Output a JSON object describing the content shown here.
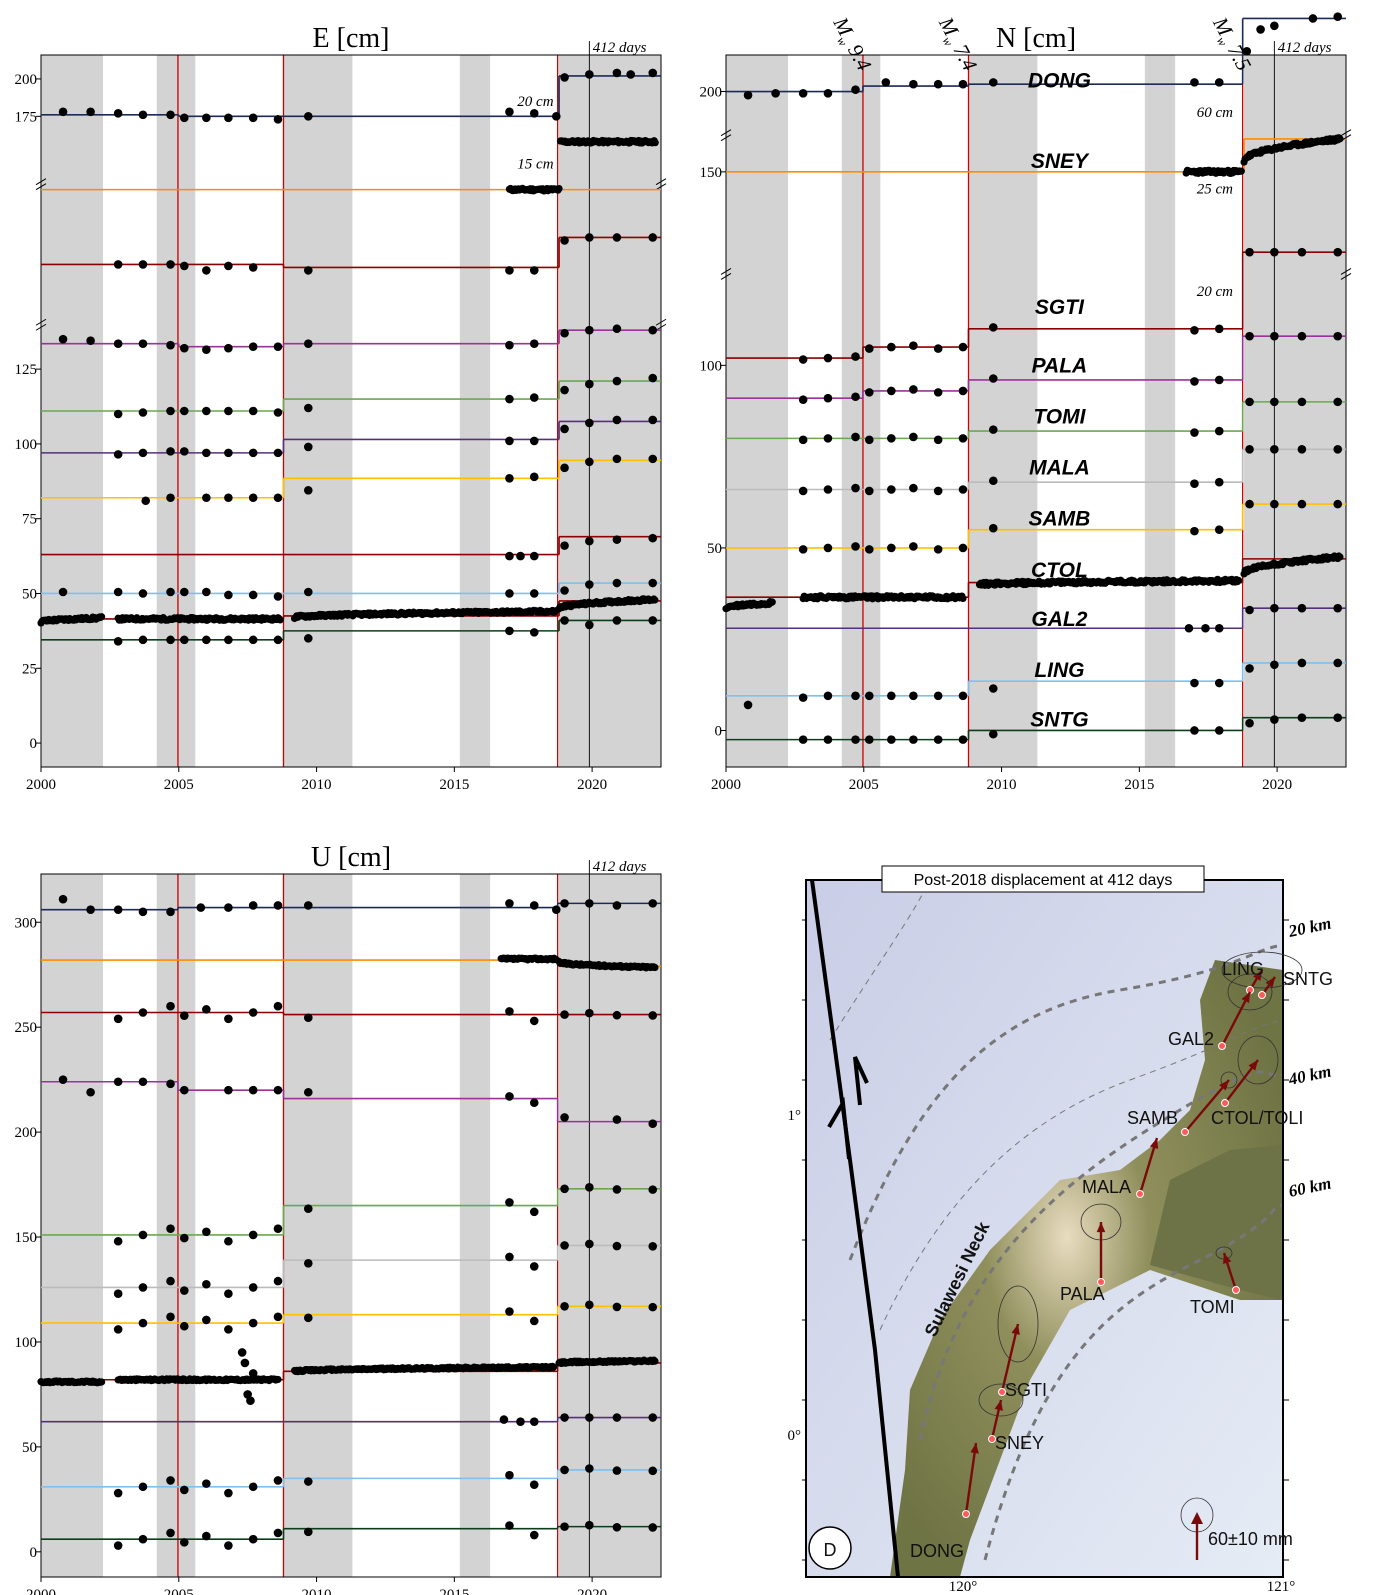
{
  "colors": {
    "DONG": "#1c2a57",
    "SNEY": "#ff8c00",
    "SGTI": "#8b0000",
    "PALA": "#993399",
    "TOMI": "#6aa84f",
    "MALA": "#bbbbbb",
    "SAMB": "#ffc000",
    "CTOL": "#8b0000",
    "GAL2": "#55307a",
    "LING": "#7ec0ee",
    "SNTG": "#0b3d1a",
    "event_line": "#cc0000",
    "shade": "#d3d3d3",
    "point": "#000000",
    "arrow": "#7a0a0a"
  },
  "chart_data": [
    {
      "type": "scatter",
      "panel": "E",
      "title": "E [cm]",
      "xlim": [
        2000,
        2022.5
      ],
      "ylim": [
        -8,
        230
      ],
      "xticks": [
        "2000",
        "2005",
        "2010",
        "2015",
        "2020"
      ],
      "ytick_labels": [
        "0",
        "25",
        "50",
        "75",
        "100",
        "125",
        "175",
        "200"
      ],
      "annotation_412": "412 days",
      "break_labels": [
        "20 cm",
        "15 cm"
      ],
      "series": [
        {
          "name": "DONG",
          "color_key": "DONG",
          "offset_steps": [
            [
              2000,
              210
            ],
            [
              2005,
              209.5
            ],
            [
              2008.8,
              209.5
            ],
            [
              2018.8,
              223
            ]
          ],
          "x": [
            2000.8,
            2001.8,
            2002.8,
            2003.7,
            2004.7,
            2005.2,
            2006.0,
            2006.8,
            2007.7,
            2008.6,
            2009.7,
            2017.0,
            2017.9,
            2018.7,
            2019.0,
            2019.9,
            2020.9,
            2021.4,
            2022.2
          ],
          "y": [
            211,
            211,
            210.5,
            210,
            210,
            209,
            209,
            209,
            209,
            208.5,
            209.5,
            211,
            210.5,
            209.5,
            222.5,
            223.5,
            224,
            223.5,
            224
          ]
        },
        {
          "name": "SNEY",
          "color_key": "SNEY",
          "offset_steps": [
            [
              2000,
              185
            ],
            [
              2018.8,
              185
            ]
          ],
          "dense": [
            [
              2017,
              2018.8,
              185
            ],
            [
              2018.85,
              2022.3,
              201
            ]
          ]
        },
        {
          "name": "SGTI",
          "color_key": "SGTI",
          "offset_steps": [
            [
              2000,
              160
            ],
            [
              2008.8,
              159
            ],
            [
              2018.8,
              169
            ]
          ],
          "x": [
            2002.8,
            2003.7,
            2004.7,
            2005.2,
            2006.0,
            2006.8,
            2007.7,
            2009.7,
            2017.0,
            2017.9,
            2019.0,
            2019.9,
            2020.9,
            2022.2
          ],
          "y": [
            160,
            160,
            160,
            159.5,
            158,
            159.5,
            159,
            158,
            158,
            158,
            168,
            169,
            169,
            169
          ]
        },
        {
          "name": "PALA",
          "color_key": "PALA",
          "offset_steps": [
            [
              2000,
              133.5
            ],
            [
              2005,
              132.5
            ],
            [
              2008.8,
              133.5
            ],
            [
              2018.8,
              138
            ]
          ],
          "x": [
            2000.8,
            2001.8,
            2002.8,
            2003.7,
            2004.7,
            2005.2,
            2006.0,
            2006.8,
            2007.7,
            2008.6,
            2009.7,
            2017.0,
            2017.9,
            2019.0,
            2019.9,
            2020.9,
            2022.2
          ],
          "y": [
            135,
            134.5,
            133.5,
            133.5,
            133,
            132,
            131.5,
            132,
            132.5,
            132.5,
            133.5,
            133,
            133.5,
            137,
            138,
            138.5,
            138
          ]
        },
        {
          "name": "TOMI",
          "color_key": "TOMI",
          "offset_steps": [
            [
              2000,
              111
            ],
            [
              2008.8,
              115
            ],
            [
              2018.8,
              121
            ]
          ],
          "x": [
            2002.8,
            2003.7,
            2004.7,
            2005.2,
            2006.0,
            2006.8,
            2007.7,
            2008.6,
            2009.7,
            2017.0,
            2017.9,
            2019.0,
            2019.9,
            2020.9,
            2022.2
          ],
          "y": [
            110,
            110.5,
            111,
            111,
            111,
            111,
            111,
            110.5,
            112,
            115,
            115.5,
            118,
            120,
            121,
            122
          ]
        },
        {
          "name": "GAL2",
          "color_key": "GAL2",
          "offset_steps": [
            [
              2000,
              97
            ],
            [
              2008.8,
              101.5
            ],
            [
              2018.8,
              107.5
            ]
          ],
          "x": [
            2002.8,
            2003.7,
            2004.7,
            2005.2,
            2006.0,
            2006.8,
            2007.7,
            2008.6,
            2009.7,
            2017.0,
            2017.9,
            2019.0,
            2019.9,
            2020.9,
            2022.2
          ],
          "y": [
            96.5,
            97,
            97.5,
            97.5,
            97,
            97,
            97,
            97,
            99,
            101,
            101,
            105,
            107,
            108,
            108
          ]
        },
        {
          "name": "SAMB",
          "color_key": "SAMB",
          "offset_steps": [
            [
              2000,
              82
            ],
            [
              2008.8,
              88.5
            ],
            [
              2018.8,
              94.5
            ]
          ],
          "x": [
            2003.8,
            2004.7,
            2006.0,
            2006.8,
            2007.7,
            2008.6,
            2009.7,
            2017.0,
            2017.9,
            2019.0,
            2019.9,
            2020.9,
            2022.2
          ],
          "y": [
            81,
            82,
            82,
            82,
            82,
            82,
            84.5,
            88.5,
            89,
            92,
            94,
            95,
            95
          ]
        },
        {
          "name": "CTOL",
          "color_key": "CTOL",
          "offset_steps": [
            [
              2000,
              41.5
            ],
            [
              2008.8,
              42.5
            ],
            [
              2018.8,
              47.5
            ]
          ],
          "dense": [
            [
              2000,
              2002.2,
              40.5,
              41.8
            ],
            [
              2002.8,
              2008.7,
              41.5,
              41.5
            ],
            [
              2009.2,
              2018.7,
              42,
              44
            ],
            [
              2018.8,
              2022.3,
              45,
              48
            ]
          ]
        },
        {
          "name": "MALA",
          "color_key": "CTOL",
          "offset_steps": [
            [
              2000,
              63
            ],
            [
              2018.8,
              69
            ]
          ],
          "x": [
            2017.0,
            2017.4,
            2017.9,
            2019.0,
            2019.9,
            2020.9,
            2022.2
          ],
          "y": [
            62.5,
            62.5,
            62.5,
            66,
            67.5,
            68,
            68.5
          ]
        },
        {
          "name": "LING",
          "color_key": "LING",
          "offset_steps": [
            [
              2000,
              50
            ],
            [
              2018.8,
              53.5
            ]
          ],
          "x": [
            2000.8,
            2002.8,
            2003.7,
            2004.7,
            2005.2,
            2006.0,
            2006.8,
            2007.7,
            2008.6,
            2009.7,
            2017.0,
            2017.9,
            2019.0,
            2019.9,
            2020.9,
            2022.2
          ],
          "y": [
            50.5,
            50.5,
            50,
            50.5,
            50.5,
            50.5,
            49.5,
            49.5,
            49,
            50.5,
            50,
            50,
            51,
            53,
            53.5,
            53.5
          ]
        },
        {
          "name": "SNTG",
          "color_key": "SNTG",
          "offset_steps": [
            [
              2000,
              34.5
            ],
            [
              2008.8,
              37.5
            ],
            [
              2018.8,
              41
            ]
          ],
          "x": [
            2002.8,
            2003.7,
            2004.7,
            2005.2,
            2006.0,
            2006.8,
            2007.7,
            2008.6,
            2009.7,
            2017.0,
            2017.9,
            2019.0,
            2019.9,
            2020.9,
            2022.2
          ],
          "y": [
            34,
            34.5,
            34.5,
            34.5,
            34.5,
            34.5,
            34.5,
            34.5,
            35,
            37.5,
            37,
            41,
            39.5,
            41,
            41
          ]
        }
      ]
    },
    {
      "type": "scatter",
      "panel": "N",
      "title": "N [cm]",
      "xlim": [
        2000,
        2022.5
      ],
      "ylim": [
        -10,
        185
      ],
      "xticks": [
        "2000",
        "2005",
        "2010",
        "2015",
        "2020"
      ],
      "ytick_labels": [
        "0",
        "50",
        "100",
        "150",
        "200"
      ],
      "annotation_412": "412 days",
      "break_labels": [
        "60 cm",
        "25 cm",
        "20 cm"
      ],
      "earthquakes": [
        "M",
        "w",
        "9.4",
        "M",
        "w",
        "7.4",
        "M",
        "w",
        "7.5"
      ],
      "station_labels": [
        "DONG",
        "SNEY",
        "SGTI",
        "PALA",
        "TOMI",
        "MALA",
        "SAMB",
        "CTOL",
        "GAL2",
        "LING",
        "SNTG"
      ]
    },
    {
      "type": "scatter",
      "panel": "U",
      "title": "U [cm]",
      "xlim": [
        2000,
        2022.5
      ],
      "ylim": [
        -12,
        323
      ],
      "xticks": [
        "2000",
        "2005",
        "2010",
        "2015",
        "2020"
      ],
      "ytick_labels": [
        "0",
        "50",
        "100",
        "150",
        "200",
        "250",
        "300"
      ],
      "annotation_412": "412 days"
    }
  ],
  "map": {
    "title": "Post-2018 displacement at 412 days",
    "panel_label": "D",
    "region_label": "Sulawesi Neck",
    "contours": [
      "20 km",
      "40 km",
      "60 km"
    ],
    "scale_label": "60±10 mm",
    "lat_ticks": [
      "1°",
      "0°"
    ],
    "lon_ticks": [
      "120°",
      "121°"
    ],
    "stations": [
      "LING",
      "SNTG",
      "GAL2",
      "SAMB",
      "CTOL/TOLI",
      "MALA",
      "PALA",
      "TOMI",
      "SGTI",
      "SNEY",
      "DONG"
    ]
  }
}
